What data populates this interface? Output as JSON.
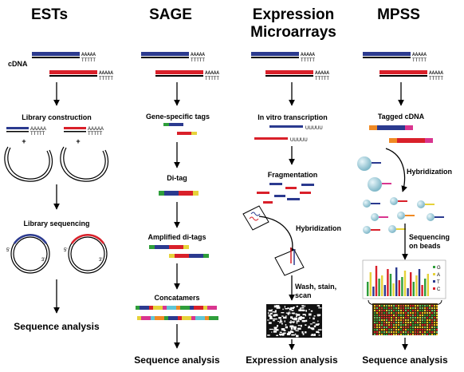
{
  "columns": {
    "ests": {
      "title": "ESTs",
      "cdna_label": "cDNA",
      "step1": "Library construction",
      "plus": "+",
      "step2": "Library sequencing",
      "five_prime": "5'",
      "three_prime": "3'",
      "output": "Sequence analysis"
    },
    "sage": {
      "title": "SAGE",
      "step1": "Gene-specific tags",
      "step2": "Di-tag",
      "step3": "Amplified di-tags",
      "step4": "Concatamers",
      "output": "Sequence analysis"
    },
    "microarrays": {
      "title_line1": "Expression",
      "title_line2": "Microarrays",
      "step1": "In vitro transcription",
      "uuuuu": "UUUUU",
      "step2": "Fragmentation",
      "step3": "Hybridization",
      "step4_line1": "Wash, stain,",
      "step4_line2": "scan",
      "output": "Expression analysis"
    },
    "mpss": {
      "title": "MPSS",
      "step1": "Tagged cDNA",
      "step2": "Hybridization",
      "step3_line1": "Sequencing",
      "step3_line2": "on beads",
      "legend": [
        "G",
        "A",
        "T",
        "C"
      ],
      "output": "Sequence analysis"
    }
  },
  "poly_a": "AAAAA",
  "poly_t": "TTTTT",
  "colors": {
    "blue": "#2b3a8f",
    "red": "#d9202a",
    "green": "#2e9e3a",
    "yellow": "#e6d23a",
    "magenta": "#d9358f",
    "orange": "#f08a24",
    "cyan": "#5fc6d6",
    "bead": "#a8d4de"
  }
}
